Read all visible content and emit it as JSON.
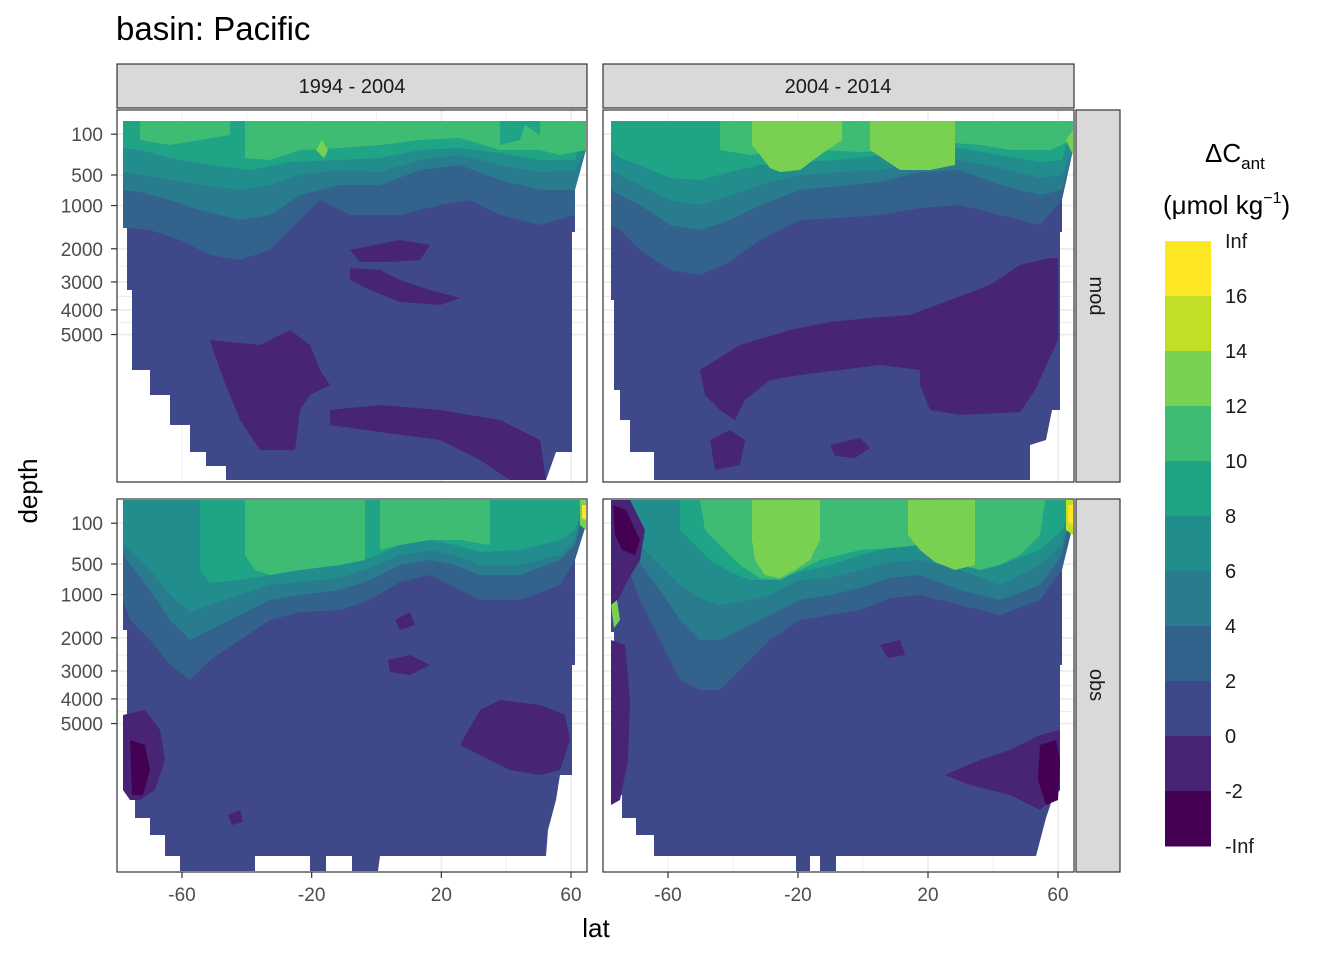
{
  "chart_data": {
    "type": "heatmap",
    "title": "basin: Pacific",
    "xlabel": "lat",
    "ylabel": "depth",
    "x_ticks": [
      -60,
      -20,
      20,
      60
    ],
    "x_tick_labels": [
      "-60",
      "-20",
      "20",
      "60"
    ],
    "xlim": [
      -80,
      64
    ],
    "y_ticks": [
      100,
      500,
      1000,
      2000,
      3000,
      4000,
      5000
    ],
    "y_tick_labels": [
      "100",
      "500",
      "1000",
      "2000",
      "3000",
      "4000",
      "5000"
    ],
    "y_scale": "reversed square-root",
    "ylim": [
      5500,
      0
    ],
    "facet_cols": [
      "1994 - 2004",
      "2004 - 2014"
    ],
    "facet_rows": [
      "mod",
      "obs"
    ],
    "legend": {
      "title_main": "ΔC",
      "title_sub": "ant",
      "unit_open": "(μmol kg",
      "unit_sup": "−1",
      "unit_close": ")",
      "breaks": [
        "Inf",
        "16",
        "14",
        "12",
        "10",
        "8",
        "6",
        "4",
        "2",
        "0",
        "-2",
        "-Inf"
      ],
      "colors": [
        "#FDE725",
        "#C0DF25",
        "#7AD151",
        "#3FBC73",
        "#20A486",
        "#218E8D",
        "#287C8E",
        "#33638D",
        "#3F4889",
        "#482475",
        "#440154"
      ],
      "placement": "right"
    },
    "grid": true,
    "panels": [
      {
        "row": "mod",
        "col": "1994 - 2004",
        "surface_max": 12,
        "deep_min": -2,
        "contours": [
          {
            "level": "10 to 12",
            "lat_range": [
              -50,
              55
            ],
            "depth_range": [
              0,
              150
            ]
          },
          {
            "level": "0 to 2",
            "lat_range": [
              -75,
              60
            ],
            "depth_range": [
              600,
              5500
            ]
          },
          {
            "level": "-2 to 0",
            "lat_range": [
              -60,
              55
            ],
            "depth_range": [
              2200,
              5500
            ]
          }
        ]
      },
      {
        "row": "mod",
        "col": "2004 - 2014",
        "surface_max": 14,
        "deep_min": -2,
        "contours": [
          {
            "level": "12 to 14",
            "lat_range": [
              -40,
              40
            ],
            "depth_range": [
              0,
              120
            ]
          },
          {
            "level": "0 to 2",
            "lat_range": [
              -75,
              62
            ],
            "depth_range": [
              700,
              5500
            ]
          },
          {
            "level": "-2 to 0",
            "lat_range": [
              -50,
              60
            ],
            "depth_range": [
              1500,
              4500
            ]
          }
        ]
      },
      {
        "row": "obs",
        "col": "1994 - 2004",
        "surface_max": "Inf",
        "deep_min": "-Inf",
        "contours": [
          {
            "level": "10 to 12",
            "lat_range": [
              -45,
              45
            ],
            "depth_range": [
              0,
              200
            ]
          },
          {
            "level": "0 to 2",
            "lat_range": [
              -75,
              62
            ],
            "depth_range": [
              900,
              5500
            ]
          },
          {
            "level": "-Inf to -2",
            "lat_range": [
              -78,
              -72
            ],
            "depth_range": [
              2500,
              3800
            ]
          }
        ]
      },
      {
        "row": "obs",
        "col": "2004 - 2014",
        "surface_max": "Inf",
        "deep_min": "-Inf",
        "contours": [
          {
            "level": "12 to 14",
            "lat_range": [
              -35,
              35
            ],
            "depth_range": [
              0,
              130
            ]
          },
          {
            "level": "0 to 2",
            "lat_range": [
              -72,
              62
            ],
            "depth_range": [
              1000,
              5500
            ]
          },
          {
            "level": "-Inf to -2",
            "lat_range": [
              -78,
              -73
            ],
            "depth_range": [
              0,
              100
            ]
          }
        ]
      }
    ]
  }
}
